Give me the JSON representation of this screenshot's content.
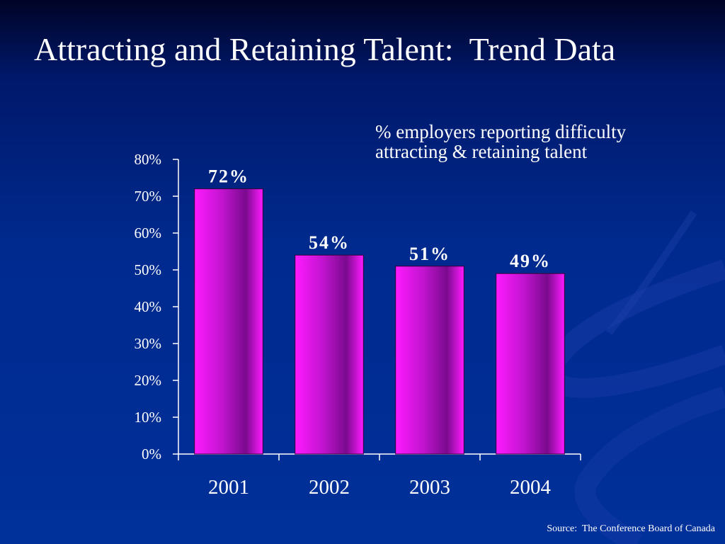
{
  "slide": {
    "title": "Attracting and Retaining Talent:  Trend Data",
    "source": "Source:  The Conference Board of Canada"
  },
  "colors": {
    "bar_fill_light": "#ff1aff",
    "bar_fill_dark": "#7a0a8e",
    "axis": "#ffffff",
    "text": "#ffffff",
    "background": "#002a8e"
  },
  "chart_data": {
    "type": "bar",
    "title": "% employers reporting difficulty attracting & retaining talent",
    "title_lines": [
      "% employers reporting difficulty",
      "attracting & retaining talent"
    ],
    "categories": [
      "2001",
      "2002",
      "2003",
      "2004"
    ],
    "values": [
      72,
      54,
      51,
      49
    ],
    "data_labels": [
      "72%",
      "54%",
      "51%",
      "49%"
    ],
    "ylim": [
      0,
      80
    ],
    "yticks": [
      0,
      10,
      20,
      30,
      40,
      50,
      60,
      70,
      80
    ],
    "ytick_labels": [
      "0%",
      "10%",
      "20%",
      "30%",
      "40%",
      "50%",
      "60%",
      "70%",
      "80%"
    ],
    "grid": false,
    "legend": "none",
    "xlabel": "",
    "ylabel": ""
  }
}
